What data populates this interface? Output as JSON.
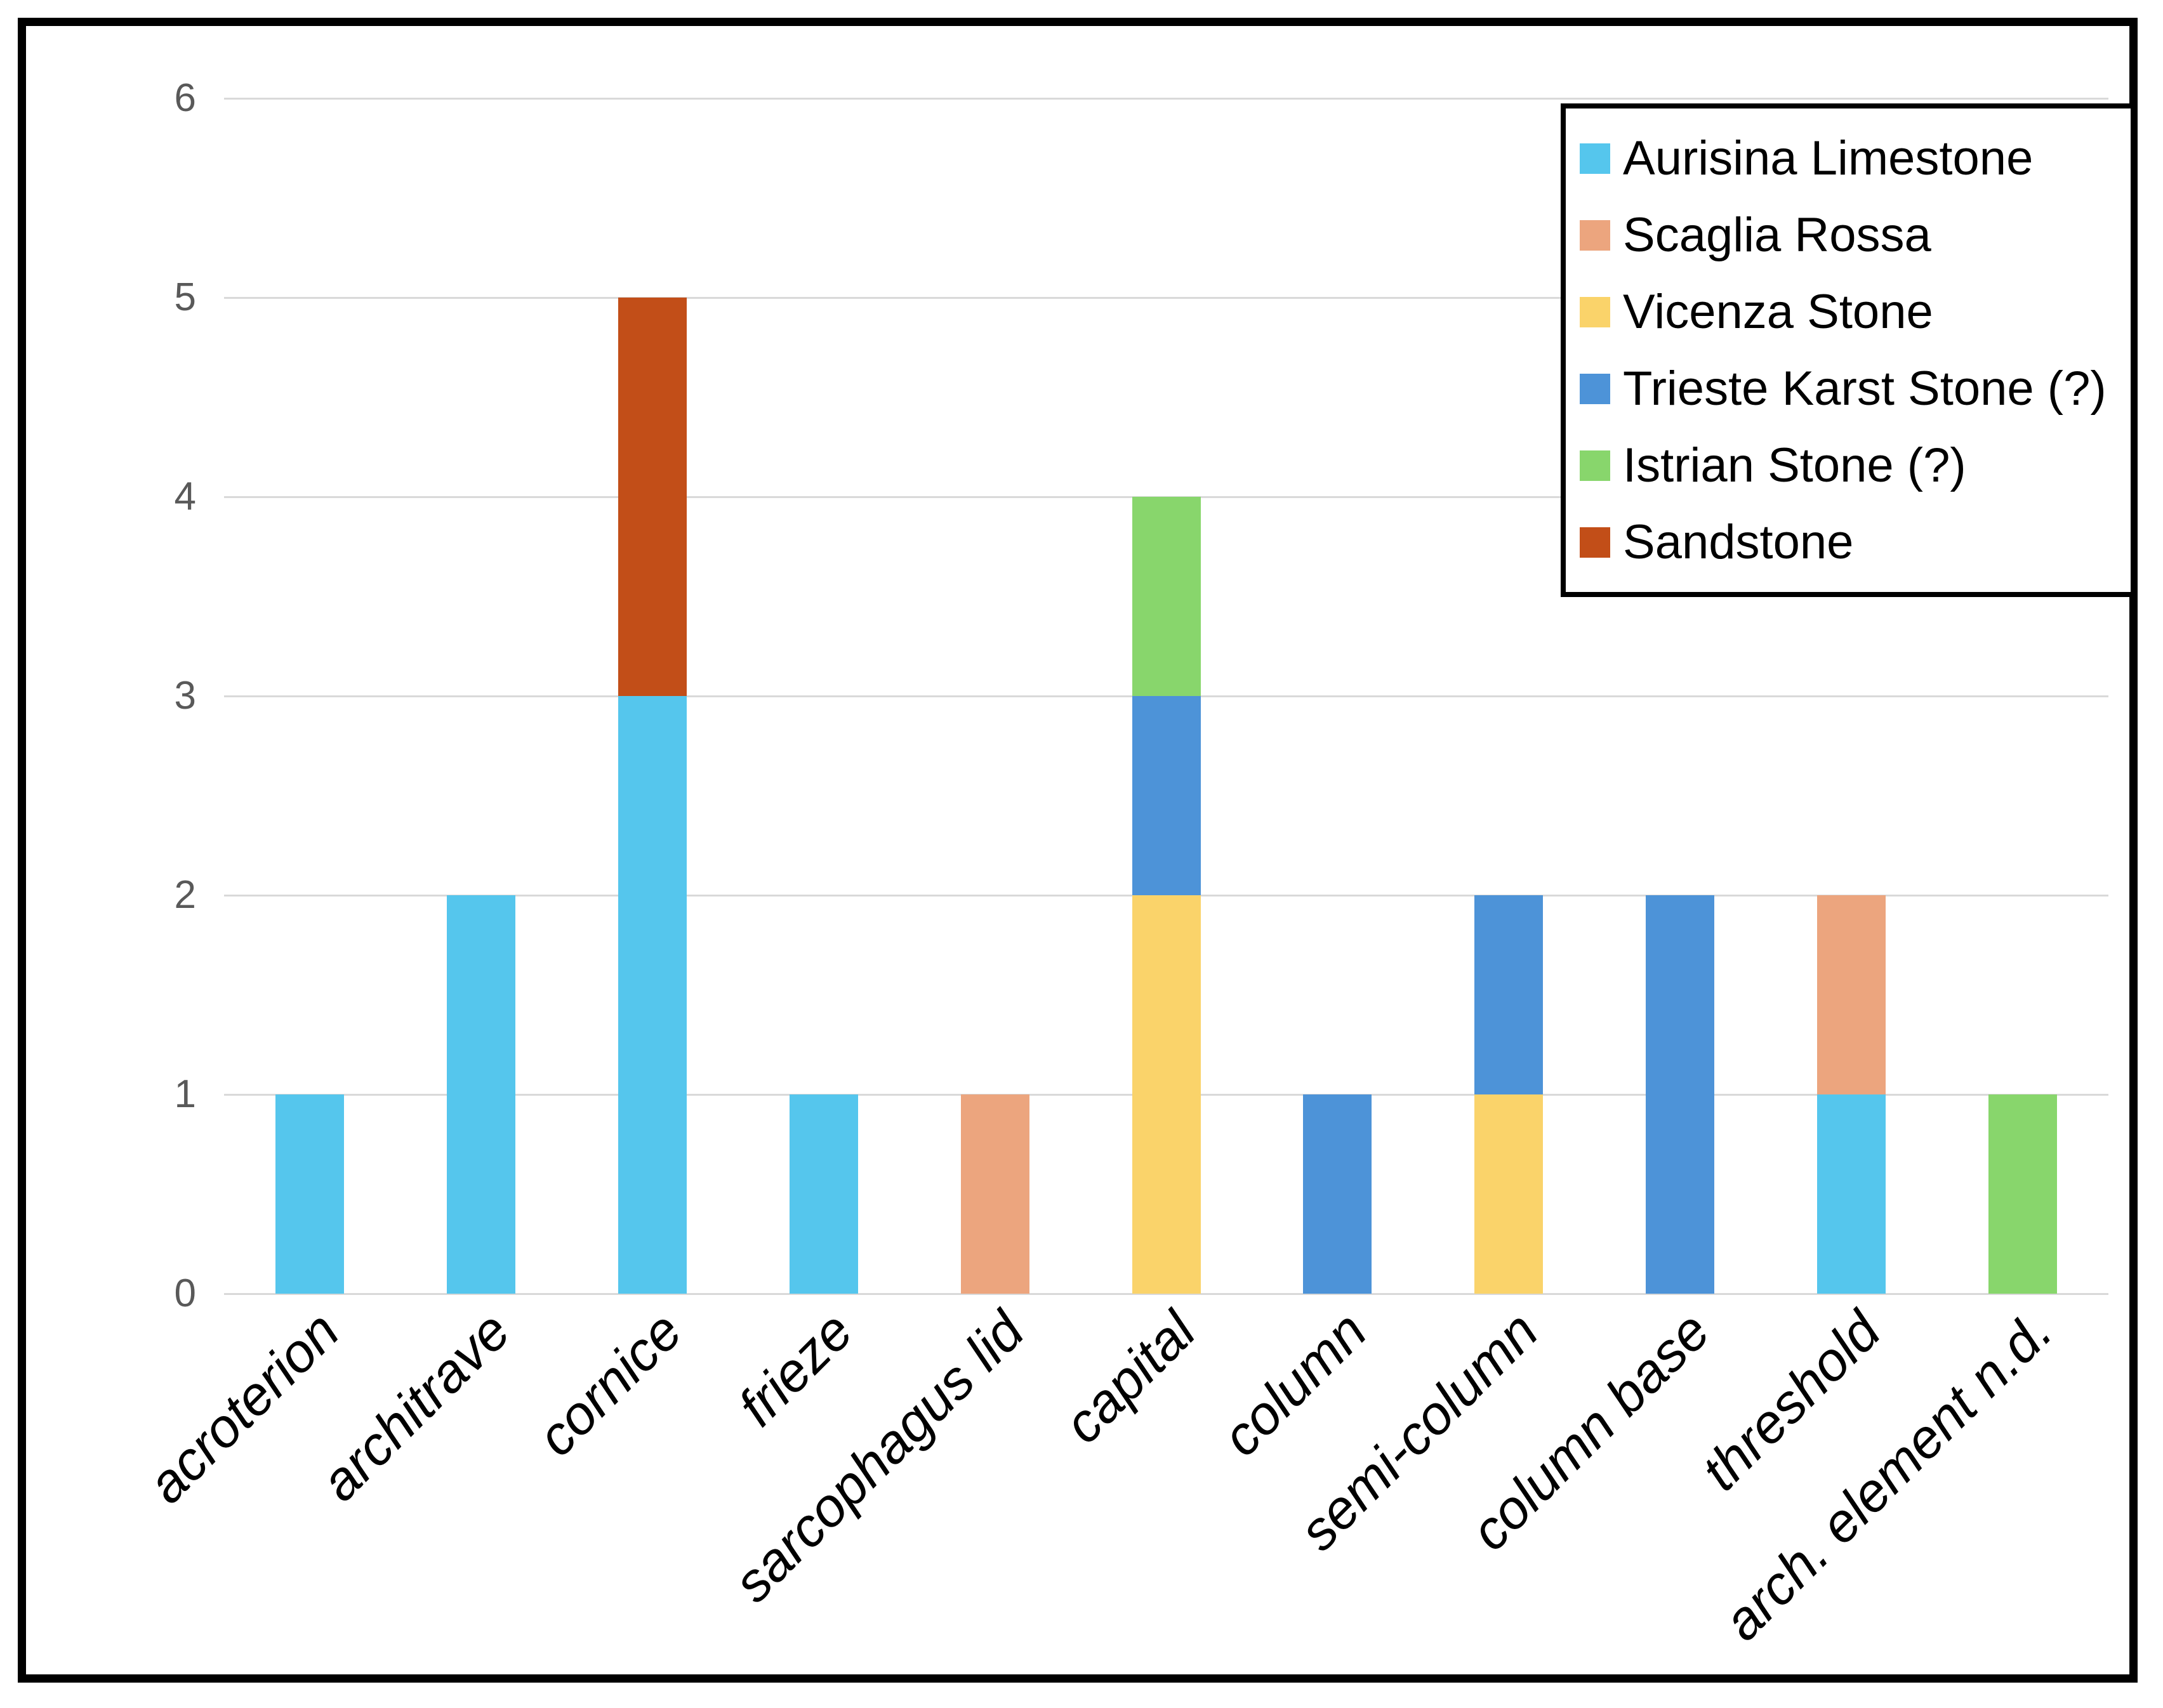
{
  "chart_data": {
    "type": "bar",
    "stacked": true,
    "title": "",
    "xlabel": "",
    "ylabel": "",
    "categories": [
      "acroterion",
      "architrave",
      "cornice",
      "frieze",
      "sarcophagus lid",
      "capital",
      "column",
      "semi-column",
      "column base",
      "threshold",
      "arch. element n.d."
    ],
    "series": [
      {
        "name": "Aurisina Limestone",
        "color": "#55C6ED",
        "values": [
          1,
          2,
          3,
          1,
          0,
          0,
          0,
          0,
          0,
          1,
          0
        ]
      },
      {
        "name": "Scaglia Rossa",
        "color": "#ECA57E",
        "values": [
          0,
          0,
          0,
          0,
          1,
          0,
          0,
          0,
          0,
          1,
          0
        ]
      },
      {
        "name": "Vicenza Stone",
        "color": "#FAD36A",
        "values": [
          0,
          0,
          0,
          0,
          0,
          2,
          0,
          1,
          0,
          0,
          0
        ]
      },
      {
        "name": "Trieste Karst Stone (?)",
        "color": "#4D93D8",
        "values": [
          0,
          0,
          0,
          0,
          0,
          1,
          1,
          1,
          2,
          0,
          0
        ]
      },
      {
        "name": "Istrian Stone (?)",
        "color": "#88D66C",
        "values": [
          0,
          0,
          0,
          0,
          0,
          1,
          0,
          0,
          0,
          0,
          1
        ]
      },
      {
        "name": "Sandstone",
        "color": "#C24E18",
        "values": [
          0,
          0,
          2,
          0,
          0,
          0,
          0,
          0,
          0,
          0,
          0
        ]
      }
    ],
    "totals_per_category": [
      1,
      2,
      5,
      1,
      1,
      4,
      1,
      2,
      2,
      2,
      1
    ],
    "ylim": [
      0,
      6
    ],
    "yticks": [
      0,
      1,
      2,
      3,
      4,
      5,
      6
    ],
    "grid": "horizontal",
    "gridline_color": "#D9D9D9",
    "tick_label_color": "#595959",
    "category_label_color": "#000000",
    "legend_position": "top-right",
    "legend_border_color": "#000000",
    "frame_border_color": "#000000",
    "background": "#FFFFFF"
  }
}
